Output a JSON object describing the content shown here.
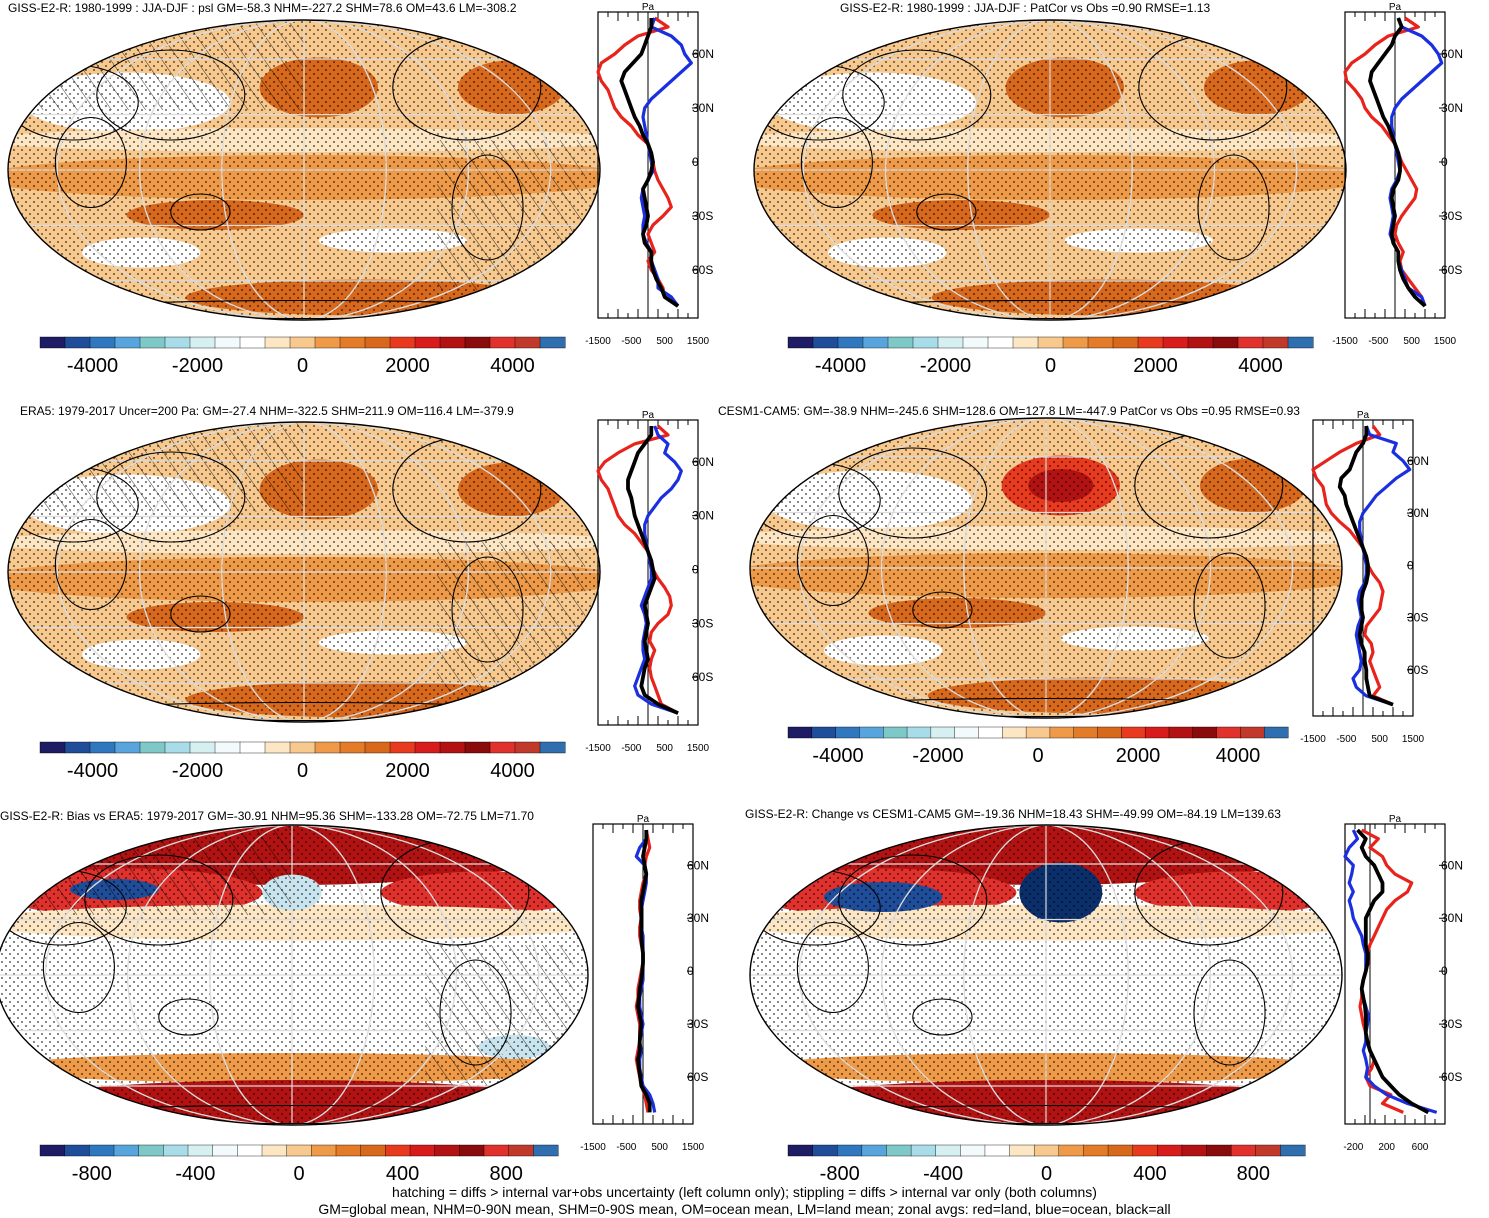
{
  "colors": {
    "background": "#ffffff",
    "land_line": "#e8231c",
    "ocean_line": "#1a2fe0",
    "all_line": "#000000",
    "map_base": "#f7c98e",
    "map_mid": "#ee9a48",
    "map_strong": "#d8691c",
    "map_pale": "#fde6c4",
    "map_blue": "#c7e4ef",
    "map_deep_blue": "#0a2f6b",
    "map_deep_red": "#b31212",
    "colorbar": [
      "#1e1c64",
      "#1f4d9a",
      "#2f78c0",
      "#58a5de",
      "#7fc8c8",
      "#a8dce8",
      "#d6f0f2",
      "#f2fafc",
      "#ffffff",
      "#fde6c4",
      "#f7c98e",
      "#ee9a48",
      "#e37b28",
      "#d8691c",
      "#e83a1e",
      "#d81c1c",
      "#b31212",
      "#8a0b0b",
      "#e0312c",
      "#c0392b",
      "#2f6fb0"
    ]
  },
  "chart_data": [
    {
      "type": "heatmap",
      "id": "giss-e2-r",
      "title": "GISS-E2-R: 1980-1999 : JJA-DJF : psl GM=-58.3 NHM=-227.2 SHM=78.6 OM=43.6 LM=-308.2",
      "variable": "psl",
      "period": "1980-1999",
      "season_diff": "JJA-DJF",
      "stats": {
        "GM": -58.3,
        "NHM": -227.2,
        "SHM": 78.6,
        "OM": 43.6,
        "LM": -308.2
      },
      "map_pattern": "base",
      "colorbar": {
        "range": [
          -5000,
          5000
        ],
        "ticks": [
          -4000,
          -2000,
          0,
          2000,
          4000
        ]
      },
      "zonal": {
        "ylabel": "Pa",
        "lat_ticks": [
          "60N",
          "30N",
          "0",
          "30S",
          "60S"
        ],
        "xticks": [
          -1500,
          -500,
          500,
          1500
        ],
        "xlim": [
          -1500,
          1500
        ],
        "lat": [
          80,
          75,
          70,
          65,
          60,
          55,
          50,
          45,
          40,
          35,
          30,
          25,
          20,
          15,
          10,
          5,
          0,
          -5,
          -10,
          -15,
          -20,
          -25,
          -30,
          -35,
          -40,
          -45,
          -50,
          -55,
          -60,
          -65,
          -70,
          -75,
          -80
        ],
        "land": [
          200,
          600,
          -300,
          -700,
          -1000,
          -1400,
          -1500,
          -1400,
          -1200,
          -1100,
          -1000,
          -800,
          -500,
          -300,
          0,
          100,
          150,
          200,
          300,
          450,
          600,
          700,
          450,
          150,
          0,
          100,
          200,
          0,
          100,
          300,
          450,
          500,
          900
        ],
        "ocean": [
          200,
          100,
          700,
          1000,
          1100,
          1300,
          1000,
          700,
          400,
          100,
          -100,
          -150,
          -100,
          -50,
          0,
          50,
          100,
          150,
          0,
          -150,
          -200,
          -150,
          -100,
          -150,
          -150,
          -50,
          100,
          100,
          200,
          300,
          300,
          700,
          900
        ],
        "all": [
          100,
          100,
          0,
          -100,
          -200,
          -450,
          -700,
          -800,
          -700,
          -600,
          -500,
          -400,
          -250,
          -150,
          0,
          100,
          150,
          100,
          0,
          -150,
          -100,
          -50,
          0,
          -50,
          -150,
          -100,
          100,
          100,
          150,
          250,
          400,
          500,
          900
        ]
      }
    },
    {
      "type": "heatmap",
      "id": "giss-e2-r-patcor",
      "title": "GISS-E2-R: 1980-1999 : JJA-DJF : PatCor vs Obs =0.90 RMSE=1.13",
      "stats": {
        "PatCor": 0.9,
        "RMSE": 1.13
      },
      "map_pattern": "smooth",
      "colorbar": {
        "range": [
          -5000,
          5000
        ],
        "ticks": [
          -4000,
          -2000,
          0,
          2000,
          4000
        ]
      },
      "zonal": {
        "ylabel": "Pa",
        "lat_ticks": [
          "60N",
          "30N",
          "0",
          "30S",
          "60S"
        ],
        "xticks": [
          -1500,
          -500,
          500,
          1500
        ],
        "xlim": [
          -1500,
          1500
        ],
        "lat": [
          80,
          75,
          70,
          65,
          60,
          55,
          50,
          45,
          40,
          35,
          30,
          25,
          20,
          15,
          10,
          5,
          0,
          -5,
          -10,
          -15,
          -20,
          -25,
          -30,
          -35,
          -40,
          -45,
          -50,
          -55,
          -60,
          -65,
          -70,
          -75,
          -80
        ],
        "land": [
          300,
          700,
          -200,
          -600,
          -900,
          -1300,
          -1500,
          -1450,
          -1200,
          -1000,
          -900,
          -700,
          -400,
          -200,
          0,
          100,
          200,
          350,
          500,
          650,
          600,
          400,
          200,
          50,
          0,
          100,
          250,
          150,
          200,
          400,
          600,
          800,
          900
        ],
        "ocean": [
          100,
          200,
          800,
          1100,
          1300,
          1400,
          1100,
          800,
          500,
          200,
          0,
          -100,
          -100,
          -50,
          0,
          50,
          100,
          150,
          50,
          -100,
          -150,
          -100,
          -50,
          -100,
          -150,
          -50,
          100,
          100,
          200,
          300,
          400,
          800,
          900
        ],
        "all": [
          100,
          200,
          0,
          -100,
          -300,
          -500,
          -700,
          -750,
          -650,
          -550,
          -450,
          -350,
          -200,
          -100,
          0,
          100,
          150,
          150,
          100,
          -50,
          -100,
          -50,
          0,
          -50,
          -100,
          -50,
          100,
          100,
          150,
          250,
          400,
          600,
          900
        ]
      }
    },
    {
      "type": "heatmap",
      "id": "era5",
      "title": "ERA5: 1979-2017 Uncer=200 Pa: GM=-27.4 NHM=-322.5 SHM=211.9 OM=116.4 LM=-379.9",
      "stats": {
        "GM": -27.4,
        "NHM": -322.5,
        "SHM": 211.9,
        "OM": 116.4,
        "LM": -379.9,
        "Uncer": 200
      },
      "map_pattern": "base",
      "colorbar": {
        "range": [
          -5000,
          5000
        ],
        "ticks": [
          -4000,
          -2000,
          0,
          2000,
          4000
        ]
      },
      "zonal": {
        "ylabel": "Pa",
        "lat_ticks": [
          "60N",
          "30N",
          "0",
          "30S",
          "60S"
        ],
        "xticks": [
          -1500,
          -500,
          500,
          1500
        ],
        "xlim": [
          -1500,
          1500
        ],
        "lat": [
          80,
          75,
          70,
          65,
          60,
          55,
          50,
          45,
          40,
          35,
          30,
          25,
          20,
          15,
          10,
          5,
          0,
          -5,
          -10,
          -15,
          -20,
          -25,
          -30,
          -35,
          -40,
          -45,
          -50,
          -55,
          -60,
          -65,
          -70,
          -75,
          -80
        ],
        "land": [
          300,
          600,
          -400,
          -900,
          -1300,
          -1500,
          -1400,
          -1200,
          -1100,
          -1000,
          -900,
          -700,
          -400,
          -200,
          0,
          100,
          150,
          300,
          500,
          650,
          700,
          600,
          300,
          100,
          50,
          200,
          100,
          50,
          100,
          200,
          300,
          400,
          900
        ],
        "ocean": [
          200,
          300,
          600,
          500,
          800,
          1000,
          900,
          700,
          400,
          200,
          0,
          -100,
          -100,
          -50,
          0,
          50,
          100,
          100,
          0,
          -100,
          -200,
          -100,
          -50,
          -100,
          -150,
          -150,
          -100,
          -200,
          -300,
          -400,
          -300,
          100,
          900
        ],
        "all": [
          100,
          100,
          -100,
          -300,
          -400,
          -500,
          -600,
          -600,
          -500,
          -450,
          -400,
          -300,
          -200,
          -100,
          0,
          100,
          150,
          200,
          100,
          0,
          -100,
          -50,
          0,
          -50,
          -100,
          -50,
          0,
          -100,
          -150,
          -200,
          -100,
          300,
          900
        ]
      }
    },
    {
      "type": "heatmap",
      "id": "cesm1-cam5",
      "title": "CESM1-CAM5: GM=-38.9 NHM=-245.6 SHM=128.6 OM=127.8 LM=-447.9 PatCor vs Obs =0.95 RMSE=0.93",
      "stats": {
        "GM": -38.9,
        "NHM": -245.6,
        "SHM": 128.6,
        "OM": 127.8,
        "LM": -447.9,
        "PatCor": 0.95,
        "RMSE": 0.93
      },
      "map_pattern": "cesm",
      "colorbar": {
        "range": [
          -5000,
          5000
        ],
        "ticks": [
          -4000,
          -2000,
          0,
          2000,
          4000
        ]
      },
      "zonal": {
        "ylabel": "Pa",
        "lat_ticks": [
          "60N",
          "30N",
          "0",
          "30S",
          "60S"
        ],
        "xticks": [
          -1500,
          -500,
          500,
          1500
        ],
        "xlim": [
          -1500,
          1500
        ],
        "lat": [
          80,
          75,
          70,
          65,
          60,
          55,
          50,
          45,
          40,
          35,
          30,
          25,
          20,
          15,
          10,
          5,
          0,
          -5,
          -10,
          -15,
          -20,
          -25,
          -30,
          -35,
          -40,
          -45,
          -50,
          -55,
          -60,
          -65,
          -70,
          -75,
          -80
        ],
        "land": [
          300,
          500,
          -200,
          -700,
          -1100,
          -1500,
          -1400,
          -1200,
          -1150,
          -1100,
          -950,
          -700,
          -400,
          -200,
          0,
          100,
          150,
          300,
          500,
          600,
          550,
          500,
          300,
          100,
          50,
          250,
          300,
          200,
          300,
          400,
          500,
          300,
          900
        ],
        "ocean": [
          100,
          200,
          1000,
          900,
          1200,
          1400,
          1000,
          700,
          400,
          200,
          0,
          -100,
          -100,
          -50,
          0,
          50,
          100,
          100,
          50,
          -100,
          -150,
          -100,
          -50,
          -150,
          -200,
          -150,
          -100,
          -50,
          -100,
          -300,
          -200,
          100,
          900
        ],
        "all": [
          100,
          100,
          0,
          -200,
          -300,
          -400,
          -650,
          -700,
          -550,
          -500,
          -400,
          -300,
          -200,
          -100,
          0,
          100,
          150,
          150,
          100,
          0,
          -50,
          -50,
          0,
          -50,
          -100,
          -50,
          50,
          50,
          100,
          100,
          150,
          200,
          900
        ]
      }
    },
    {
      "type": "heatmap",
      "id": "giss-bias",
      "title": "GISS-E2-R: Bias vs ERA5: 1979-2017 GM=-30.91 NHM=95.36 SHM=-133.28 OM=-72.75 LM=71.70",
      "stats": {
        "GM": -30.91,
        "NHM": 95.36,
        "SHM": -133.28,
        "OM": -72.75,
        "LM": 71.7
      },
      "map_pattern": "bias",
      "colorbar": {
        "range": [
          -1000,
          1000
        ],
        "ticks": [
          -800,
          -400,
          0,
          400,
          800
        ]
      },
      "zonal": {
        "ylabel": "Pa",
        "lat_ticks": [
          "60N",
          "30N",
          "0",
          "30S",
          "60S"
        ],
        "xticks": [
          -1500,
          -500,
          500,
          1500
        ],
        "xlim": [
          -1500,
          1500
        ],
        "lat": [
          80,
          75,
          70,
          65,
          60,
          55,
          50,
          45,
          40,
          35,
          30,
          25,
          20,
          15,
          10,
          5,
          0,
          -5,
          -10,
          -15,
          -20,
          -25,
          -30,
          -35,
          -40,
          -45,
          -50,
          -55,
          -60,
          -65,
          -70,
          -75,
          -80
        ],
        "land": [
          100,
          150,
          200,
          100,
          50,
          100,
          0,
          -50,
          -100,
          -100,
          -50,
          -100,
          -100,
          -50,
          0,
          0,
          -50,
          -100,
          -150,
          -150,
          -200,
          -150,
          -100,
          -100,
          -100,
          -150,
          -200,
          -150,
          -100,
          -50,
          50,
          100,
          150
        ],
        "ocean": [
          100,
          100,
          -100,
          -200,
          50,
          100,
          100,
          50,
          0,
          -50,
          -50,
          -50,
          0,
          0,
          0,
          0,
          0,
          0,
          -50,
          -100,
          -100,
          -50,
          0,
          -50,
          -100,
          -50,
          -100,
          -100,
          -50,
          0,
          200,
          300,
          350
        ],
        "all": [
          100,
          100,
          50,
          0,
          50,
          100,
          50,
          0,
          -50,
          -50,
          -50,
          -50,
          -50,
          -30,
          0,
          0,
          -20,
          -50,
          -100,
          -120,
          -150,
          -100,
          -50,
          -80,
          -100,
          -100,
          -150,
          -120,
          -80,
          -50,
          100,
          200,
          200
        ]
      }
    },
    {
      "type": "heatmap",
      "id": "giss-change",
      "title": "GISS-E2-R: Change vs CESM1-CAM5 GM=-19.36 NHM=18.43 SHM=-49.99 OM=-84.19 LM=139.63",
      "stats": {
        "GM": -19.36,
        "NHM": 18.43,
        "SHM": -49.99,
        "OM": -84.19,
        "LM": 139.63
      },
      "map_pattern": "change",
      "colorbar": {
        "range": [
          -1000,
          1000
        ],
        "ticks": [
          -800,
          -400,
          0,
          400,
          800
        ]
      },
      "zonal": {
        "ylabel": "Pa",
        "lat_ticks": [
          "60N",
          "30N",
          "0",
          "30S",
          "60S"
        ],
        "xticks": [
          -200,
          200,
          600
        ],
        "xlim": [
          -300,
          900
        ],
        "lat": [
          80,
          75,
          70,
          65,
          60,
          55,
          50,
          45,
          40,
          35,
          30,
          25,
          20,
          15,
          10,
          5,
          0,
          -5,
          -10,
          -15,
          -20,
          -25,
          -30,
          -35,
          -40,
          -45,
          -50,
          -55,
          -60,
          -65,
          -70,
          -75,
          -80
        ],
        "land": [
          -100,
          100,
          0,
          150,
          200,
          300,
          500,
          450,
          300,
          200,
          150,
          100,
          50,
          0,
          -30,
          -20,
          -50,
          -80,
          -100,
          -100,
          -120,
          -100,
          -80,
          -50,
          -30,
          0,
          50,
          20,
          -50,
          0,
          250,
          150,
          400
        ],
        "ocean": [
          -200,
          -150,
          -250,
          -300,
          -200,
          -220,
          -250,
          -200,
          -250,
          -220,
          -200,
          -150,
          -100,
          -80,
          -50,
          -50,
          -50,
          -80,
          -100,
          -80,
          -50,
          -20,
          -30,
          -50,
          -50,
          -80,
          -50,
          -30,
          -50,
          50,
          200,
          450,
          800
        ],
        "all": [
          -150,
          -50,
          -100,
          -50,
          50,
          100,
          150,
          150,
          50,
          0,
          -50,
          -50,
          -50,
          -50,
          -30,
          -30,
          -50,
          -80,
          -100,
          -80,
          -60,
          -50,
          -50,
          -50,
          -30,
          0,
          50,
          100,
          150,
          250,
          350,
          500,
          700
        ]
      }
    }
  ],
  "footer": {
    "line1": "hatching = diffs > internal var+obs uncertainty (left column only); stippling = diffs > internal var only (both columns)",
    "line2": "GM=global mean, NHM=0-90N mean, SHM=0-90S mean, OM=ocean mean, LM=land mean; zonal avgs: red=land, blue=ocean, black=all"
  }
}
